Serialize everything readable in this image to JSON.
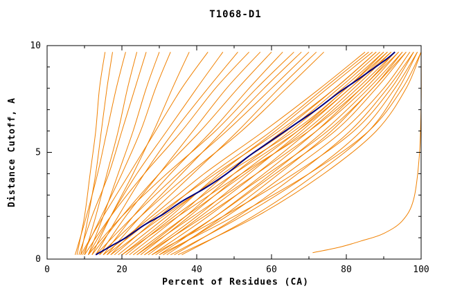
{
  "chart_data": {
    "type": "line",
    "title": "T1068-D1",
    "xlabel": "Percent of Residues (CA)",
    "ylabel": "Distance Cutoff, A",
    "xlim": [
      0,
      100
    ],
    "ylim": [
      0,
      10
    ],
    "x_major_ticks": [
      0,
      20,
      40,
      60,
      80,
      100
    ],
    "x_minor_step": 10,
    "y_major_ticks": [
      0,
      5,
      10
    ],
    "y_minor_step": 1,
    "grid": false,
    "legend": "none",
    "colors": {
      "model": "#f08000",
      "consensus": "#000080",
      "axis": "#000000",
      "background": "#ffffff"
    },
    "y_levels": [
      0.2,
      2,
      4,
      6,
      8,
      9.7
    ],
    "model_curves_x": [
      [
        8,
        10,
        11.5,
        13,
        14,
        15.5
      ],
      [
        9,
        11,
        13,
        14.5,
        16,
        17.5
      ],
      [
        7.5,
        10.5,
        13.5,
        16,
        18.5,
        21
      ],
      [
        10,
        13,
        16,
        19,
        21.5,
        24
      ],
      [
        8.5,
        12,
        16.5,
        20,
        23.5,
        26.5
      ],
      [
        11,
        15,
        19,
        23,
        26.5,
        30
      ],
      [
        9.5,
        14.5,
        20,
        25,
        29,
        33
      ],
      [
        12,
        17,
        23,
        28.5,
        33.5,
        38
      ],
      [
        9,
        15,
        22,
        29,
        36,
        43
      ],
      [
        11,
        17,
        24,
        32,
        40,
        47
      ],
      [
        13,
        19,
        26,
        34,
        43,
        51
      ],
      [
        10,
        17,
        26,
        36,
        45,
        54
      ],
      [
        14,
        21,
        30,
        39,
        48,
        57
      ],
      [
        12,
        20,
        30,
        41,
        51,
        60
      ],
      [
        15,
        23,
        33,
        44,
        54,
        63
      ],
      [
        11,
        20,
        32,
        45,
        56,
        66
      ],
      [
        16,
        25,
        36,
        47,
        58,
        68
      ],
      [
        13,
        23,
        35,
        48,
        60,
        70
      ],
      [
        17,
        27,
        39,
        51,
        62,
        72
      ],
      [
        14,
        25,
        38,
        52,
        64,
        74
      ],
      [
        15,
        28,
        42,
        58,
        73,
        85
      ],
      [
        18,
        30,
        44,
        60,
        74,
        86
      ],
      [
        20,
        33,
        46,
        61,
        75,
        87
      ],
      [
        16,
        29,
        45,
        62,
        77,
        88
      ],
      [
        22,
        35,
        48,
        63,
        77,
        88
      ],
      [
        19,
        32,
        47,
        64,
        78,
        89
      ],
      [
        24,
        37,
        50,
        65,
        79,
        90
      ],
      [
        17,
        31,
        48,
        66,
        80,
        90
      ],
      [
        25,
        38,
        52,
        67,
        80,
        91
      ],
      [
        21,
        34,
        50,
        67,
        81,
        91
      ],
      [
        26,
        40,
        54,
        68,
        81,
        92
      ],
      [
        23,
        37,
        53,
        69,
        82,
        92
      ],
      [
        27,
        41,
        56,
        70,
        83,
        93
      ],
      [
        20,
        35,
        52,
        70,
        84,
        93
      ],
      [
        28,
        43,
        58,
        72,
        84,
        94
      ],
      [
        24,
        39,
        56,
        72,
        85,
        94
      ],
      [
        30,
        45,
        60,
        74,
        86,
        95
      ],
      [
        26,
        42,
        59,
        75,
        87,
        95
      ],
      [
        32,
        47,
        62,
        76,
        87,
        96
      ],
      [
        29,
        45,
        61,
        77,
        88,
        96
      ],
      [
        31,
        48,
        64,
        79,
        90,
        97
      ],
      [
        34,
        51,
        67,
        81,
        91,
        98
      ],
      [
        28,
        47,
        66,
        82,
        92,
        98
      ],
      [
        33,
        52,
        70,
        84,
        93,
        99
      ],
      [
        36,
        55,
        72,
        86,
        94,
        99
      ],
      [
        30,
        50,
        70,
        86,
        95,
        100
      ],
      [
        35,
        56,
        74,
        88,
        96,
        100
      ]
    ],
    "outlier_curve_points": [
      [
        71,
        0.3
      ],
      [
        78,
        0.55
      ],
      [
        84,
        0.85
      ],
      [
        90,
        1.2
      ],
      [
        95,
        1.8
      ],
      [
        98,
        2.8
      ],
      [
        99.5,
        4.8
      ],
      [
        100,
        7.2
      ],
      [
        100,
        9.7
      ]
    ],
    "consensus_curve_points": [
      [
        13,
        0.2
      ],
      [
        17,
        0.6
      ],
      [
        21,
        1.0
      ],
      [
        26,
        1.6
      ],
      [
        31,
        2.1
      ],
      [
        36,
        2.7
      ],
      [
        42,
        3.3
      ],
      [
        48,
        4.0
      ],
      [
        53,
        4.7
      ],
      [
        57,
        5.2
      ],
      [
        62,
        5.8
      ],
      [
        67,
        6.4
      ],
      [
        72,
        7.0
      ],
      [
        78,
        7.8
      ],
      [
        83,
        8.4
      ],
      [
        87,
        8.9
      ],
      [
        91,
        9.4
      ],
      [
        93,
        9.7
      ]
    ]
  }
}
